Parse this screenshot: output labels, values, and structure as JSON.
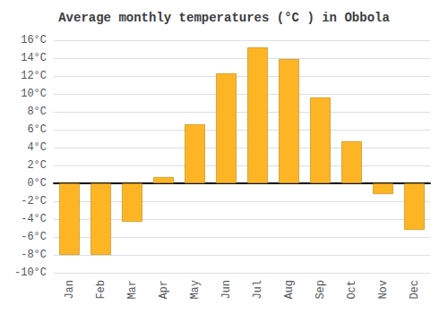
{
  "chart_data": {
    "type": "bar",
    "title": "Average monthly temperatures (°C ) in Obbola",
    "categories": [
      "Jan",
      "Feb",
      "Mar",
      "Apr",
      "May",
      "Jun",
      "Jul",
      "Aug",
      "Sep",
      "Oct",
      "Nov",
      "Dec"
    ],
    "values": [
      -8.0,
      -8.0,
      -4.3,
      0.7,
      6.6,
      12.3,
      15.2,
      13.9,
      9.6,
      4.7,
      -1.2,
      -5.2
    ],
    "color": "#FDB526",
    "ylim": [
      -10,
      16
    ],
    "yticks": [
      {
        "value": -10,
        "label": "-10°C"
      },
      {
        "value": -8,
        "label": "-8°C"
      },
      {
        "value": -6,
        "label": "-6°C"
      },
      {
        "value": -4,
        "label": "-4°C"
      },
      {
        "value": -2,
        "label": "-2°C"
      },
      {
        "value": 0,
        "label": "0°C"
      },
      {
        "value": 2,
        "label": "2°C"
      },
      {
        "value": 4,
        "label": "4°C"
      },
      {
        "value": 6,
        "label": "6°C"
      },
      {
        "value": 8,
        "label": "8°C"
      },
      {
        "value": 10,
        "label": "10°C"
      },
      {
        "value": 12,
        "label": "12°C"
      },
      {
        "value": 14,
        "label": "14°C"
      },
      {
        "value": 16,
        "label": "16°C"
      }
    ],
    "grid": true
  }
}
